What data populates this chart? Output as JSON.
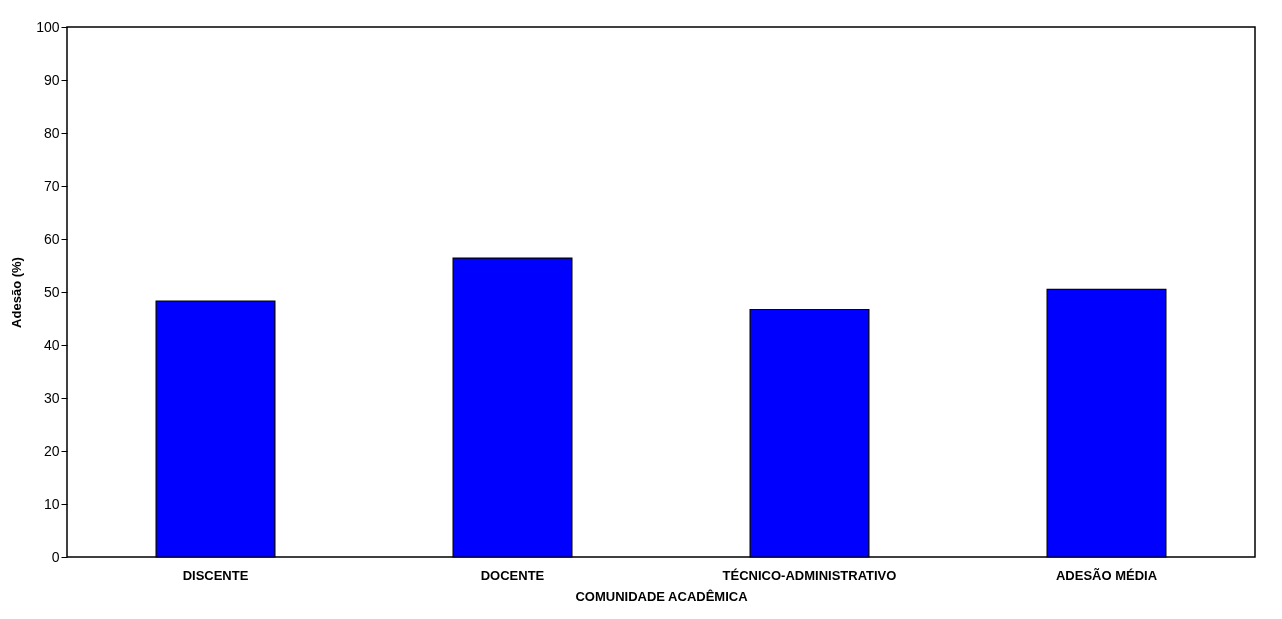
{
  "chart_data": {
    "type": "bar",
    "xlabel": "COMUNIDADE ACADÊMICA",
    "ylabel": "Adesão  (%)",
    "categories": [
      "DISCENTE",
      "DOCENTE",
      "TÉCNICO-ADMINISTRATIVO",
      "ADESÃO MÉDIA"
    ],
    "values": [
      48.3,
      56.4,
      46.7,
      50.5
    ],
    "color": "#0000ff",
    "ylim": [
      0,
      100
    ],
    "yticks": [
      0,
      10,
      20,
      30,
      40,
      50,
      60,
      70,
      80,
      90,
      100
    ],
    "grid": false
  }
}
